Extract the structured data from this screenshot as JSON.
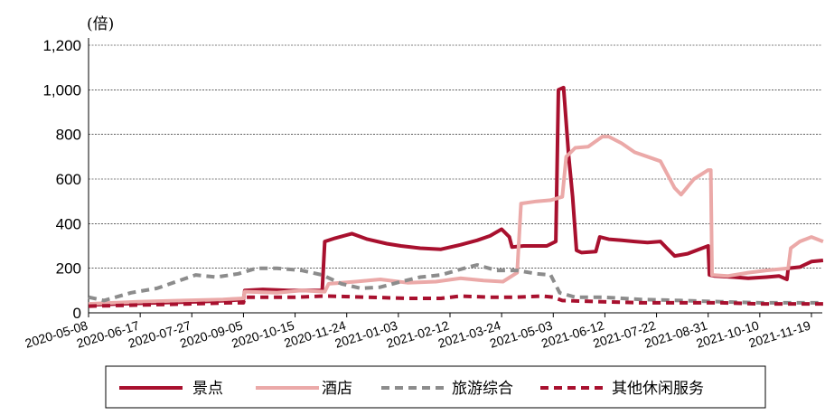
{
  "chart_data": {
    "type": "line",
    "ylabel": "(倍)",
    "ylim": [
      0,
      1200
    ],
    "yticks": [
      0,
      200,
      400,
      600,
      800,
      1000,
      1200
    ],
    "ytick_labels": [
      "0",
      "200",
      "400",
      "600",
      "800",
      "1,000",
      "1,200"
    ],
    "xtick_labels": [
      "2020-05-08",
      "2020-06-17",
      "2020-07-27",
      "2020-09-05",
      "2020-10-15",
      "2020-11-24",
      "2021-01-03",
      "2021-02-12",
      "2021-03-24",
      "2021-05-03",
      "2021-06-12",
      "2021-07-22",
      "2021-08-31",
      "2021-10-10",
      "2021-11-19"
    ],
    "grid": true,
    "legend_position": "bottom",
    "series": [
      {
        "name": "景点",
        "color": "#A8102E",
        "style": "solid",
        "x": [
          "2020-05-08",
          "2020-06-01",
          "2020-07-01",
          "2020-08-01",
          "2020-08-25",
          "2020-09-05",
          "2020-09-06",
          "2020-09-20",
          "2020-10-10",
          "2020-10-25",
          "2020-11-05",
          "2020-11-07",
          "2020-11-15",
          "2020-11-28",
          "2020-12-10",
          "2020-12-25",
          "2021-01-05",
          "2021-01-20",
          "2021-02-05",
          "2021-02-20",
          "2021-03-05",
          "2021-03-15",
          "2021-03-24",
          "2021-03-30",
          "2021-04-01",
          "2021-04-10",
          "2021-04-20",
          "2021-04-28",
          "2021-05-05",
          "2021-05-07",
          "2021-05-11",
          "2021-05-15",
          "2021-05-18",
          "2021-05-21",
          "2021-05-25",
          "2021-06-05",
          "2021-06-08",
          "2021-06-15",
          "2021-06-25",
          "2021-07-05",
          "2021-07-15",
          "2021-07-25",
          "2021-07-30",
          "2021-08-05",
          "2021-08-15",
          "2021-08-31",
          "2021-09-01",
          "2021-09-05",
          "2021-09-20",
          "2021-10-01",
          "2021-10-15",
          "2021-10-25",
          "2021-10-31",
          "2021-11-01",
          "2021-11-10",
          "2021-11-19",
          "2021-11-28"
        ],
        "y": [
          35,
          40,
          45,
          50,
          55,
          60,
          100,
          105,
          100,
          100,
          100,
          320,
          335,
          355,
          330,
          310,
          300,
          290,
          285,
          305,
          325,
          345,
          375,
          340,
          295,
          300,
          300,
          300,
          320,
          1000,
          1010,
          700,
          520,
          280,
          270,
          275,
          340,
          330,
          325,
          320,
          315,
          320,
          290,
          255,
          265,
          300,
          170,
          165,
          160,
          155,
          160,
          165,
          150,
          200,
          205,
          230,
          235
        ]
      },
      {
        "name": "酒店",
        "color": "#EBA9A8",
        "style": "solid",
        "x": [
          "2020-05-08",
          "2020-06-15",
          "2020-07-20",
          "2020-08-20",
          "2020-09-05",
          "2020-09-06",
          "2020-10-01",
          "2020-10-20",
          "2020-11-07",
          "2020-11-10",
          "2020-12-01",
          "2020-12-20",
          "2021-01-10",
          "2021-02-01",
          "2021-02-20",
          "2021-03-10",
          "2021-03-25",
          "2021-04-05",
          "2021-04-08",
          "2021-04-20",
          "2021-05-01",
          "2021-05-10",
          "2021-05-13",
          "2021-05-20",
          "2021-05-30",
          "2021-06-10",
          "2021-06-15",
          "2021-06-25",
          "2021-07-05",
          "2021-07-15",
          "2021-07-25",
          "2021-08-05",
          "2021-08-10",
          "2021-08-20",
          "2021-08-31",
          "2021-09-02",
          "2021-09-03",
          "2021-09-15",
          "2021-10-01",
          "2021-10-15",
          "2021-11-01",
          "2021-11-03",
          "2021-11-10",
          "2021-11-19",
          "2021-11-28"
        ],
        "y": [
          40,
          50,
          55,
          60,
          65,
          95,
          90,
          100,
          95,
          130,
          140,
          150,
          135,
          140,
          155,
          145,
          140,
          180,
          490,
          500,
          505,
          520,
          700,
          740,
          745,
          790,
          790,
          760,
          720,
          700,
          680,
          560,
          530,
          600,
          640,
          640,
          170,
          165,
          180,
          190,
          200,
          290,
          320,
          340,
          320
        ]
      },
      {
        "name": "旅游综合",
        "color": "#8C8C8C",
        "style": "dashed",
        "x": [
          "2020-05-08",
          "2020-05-20",
          "2020-06-10",
          "2020-06-30",
          "2020-07-15",
          "2020-07-30",
          "2020-08-15",
          "2020-09-01",
          "2020-09-15",
          "2020-10-01",
          "2020-10-20",
          "2020-11-05",
          "2020-11-20",
          "2020-12-05",
          "2020-12-20",
          "2021-01-05",
          "2021-01-20",
          "2021-02-05",
          "2021-02-20",
          "2021-03-05",
          "2021-03-20",
          "2021-04-05",
          "2021-04-20",
          "2021-05-01",
          "2021-05-08",
          "2021-05-20",
          "2021-06-10",
          "2021-07-10",
          "2021-08-10",
          "2021-09-10",
          "2021-10-10",
          "2021-11-10",
          "2021-11-28"
        ],
        "y": [
          70,
          55,
          90,
          110,
          140,
          170,
          160,
          175,
          200,
          200,
          190,
          170,
          130,
          110,
          115,
          140,
          160,
          170,
          195,
          215,
          190,
          190,
          175,
          170,
          90,
          70,
          70,
          60,
          55,
          50,
          45,
          45,
          45
        ]
      },
      {
        "name": "其他休闲服务",
        "color": "#A8102E",
        "style": "dashed",
        "x": [
          "2020-05-08",
          "2020-06-15",
          "2020-07-25",
          "2020-08-25",
          "2020-09-05",
          "2020-09-06",
          "2020-10-15",
          "2020-11-05",
          "2020-11-10",
          "2020-12-10",
          "2021-01-10",
          "2021-02-05",
          "2021-02-20",
          "2021-03-15",
          "2021-04-05",
          "2021-04-25",
          "2021-05-03",
          "2021-05-10",
          "2021-06-10",
          "2021-07-10",
          "2021-08-10",
          "2021-09-10",
          "2021-10-10",
          "2021-11-10",
          "2021-11-28"
        ],
        "y": [
          30,
          35,
          40,
          45,
          45,
          70,
          70,
          75,
          75,
          70,
          65,
          65,
          75,
          70,
          70,
          75,
          70,
          55,
          50,
          45,
          45,
          45,
          40,
          40,
          40
        ]
      }
    ]
  }
}
